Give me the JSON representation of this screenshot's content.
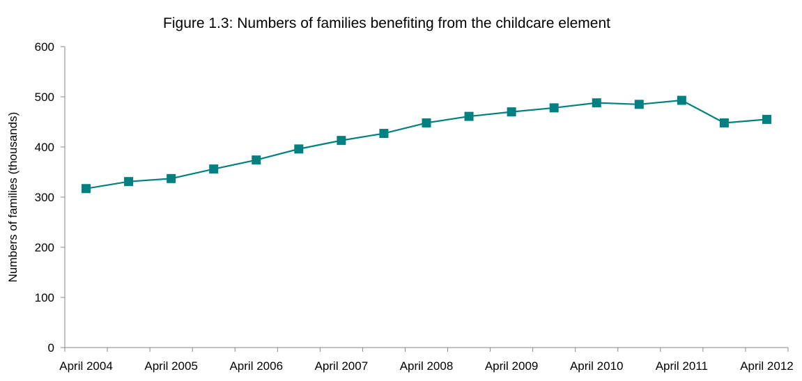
{
  "chart_data": {
    "type": "line",
    "title": "Figure 1.3: Numbers of families benefiting from the childcare element",
    "xlabel": "",
    "ylabel": "Numbers of families (thousands)",
    "ylim": [
      0,
      600
    ],
    "yticks": [
      "0",
      "100",
      "200",
      "300",
      "400",
      "500",
      "600"
    ],
    "grid": false,
    "legend": "none",
    "categories": [
      "April 2004",
      "",
      "April 2005",
      "",
      "April 2006",
      "",
      "April 2007",
      "",
      "April 2008",
      "",
      "April 2009",
      "",
      "April 2010",
      "",
      "April 2011",
      "",
      "April 2012"
    ],
    "x_tick_labels": [
      "April 2004",
      "April 2005",
      "April 2006",
      "April 2007",
      "April 2008",
      "April 2009",
      "April 2010",
      "April 2011",
      "April 2012"
    ],
    "series": [
      {
        "color": "#008080",
        "marker": "square",
        "values": [
          317,
          331,
          337,
          356,
          374,
          396,
          413,
          427,
          448,
          461,
          470,
          478,
          488,
          485,
          493,
          448,
          455
        ]
      }
    ]
  }
}
